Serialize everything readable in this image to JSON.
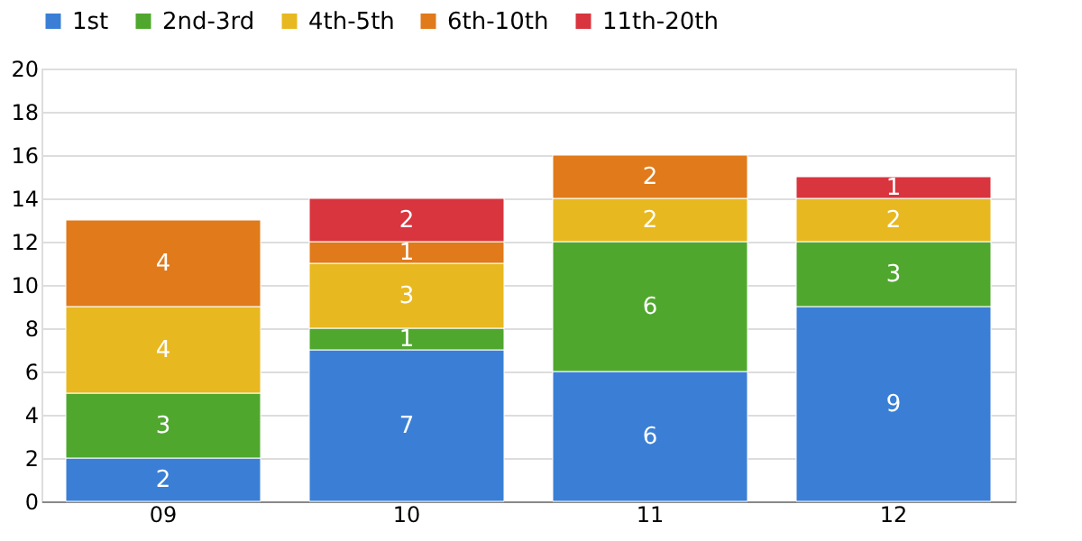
{
  "chart_data": {
    "type": "bar",
    "stacked": true,
    "categories": [
      "09",
      "10",
      "11",
      "12"
    ],
    "series": [
      {
        "name": "1st",
        "color": "#3a7fd5",
        "values": [
          2,
          7,
          6,
          9
        ]
      },
      {
        "name": "2nd-3rd",
        "color": "#4fa82d",
        "values": [
          3,
          1,
          6,
          3
        ]
      },
      {
        "name": "4th-5th",
        "color": "#e8b820",
        "values": [
          4,
          3,
          2,
          2
        ]
      },
      {
        "name": "6th-10th",
        "color": "#e07a1a",
        "values": [
          4,
          1,
          2,
          null
        ]
      },
      {
        "name": "11th-20th",
        "color": "#d8353f",
        "values": [
          null,
          2,
          null,
          1
        ]
      }
    ],
    "ylim": [
      0,
      20
    ],
    "yticks": [
      0,
      2,
      4,
      6,
      8,
      10,
      12,
      14,
      16,
      18,
      20
    ],
    "grid": "y",
    "legend": "top",
    "data_labels": true
  }
}
